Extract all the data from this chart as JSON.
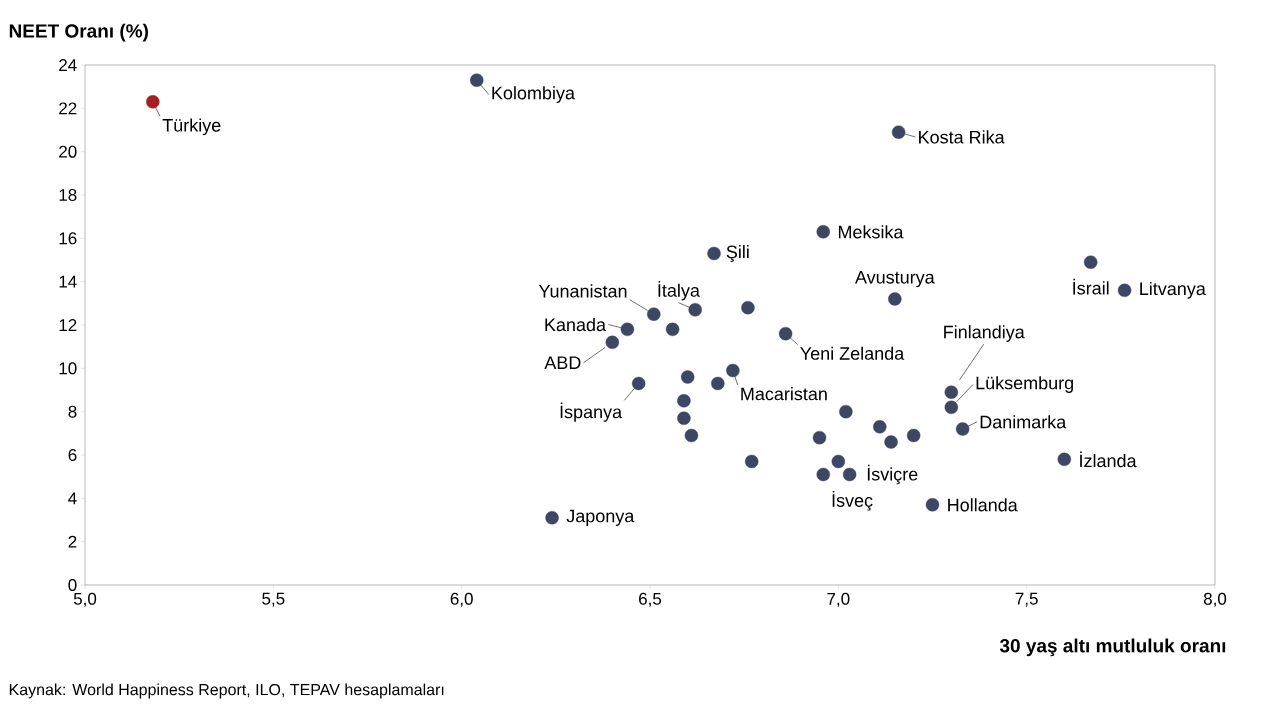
{
  "chart_data": {
    "type": "scatter",
    "ylabel": "NEET Oranı (%)",
    "xlabel": "30 yaş altı mutluluk oranı",
    "annotations": [
      "Kaynak: World Happiness Report, ILO, TEPAV hesaplamaları",
      {
        "text": "Türkiye",
        "x": 5.18,
        "y": 22.3
      },
      {
        "text": "Kolombiya",
        "x": 6.04,
        "y": 23.3
      },
      {
        "text": "Kosta Rika",
        "x": 7.16,
        "y": 20.9
      },
      {
        "text": "Meksika",
        "x": 6.96,
        "y": 16.3
      },
      {
        "text": "Şili",
        "x": 6.67,
        "y": 15.3
      },
      {
        "text": "İsrail",
        "x": 7.67,
        "y": 14.9
      },
      {
        "text": "Litvanya",
        "x": 7.76,
        "y": 13.6
      },
      {
        "text": "Avusturya",
        "x": 7.15,
        "y": 13.2
      },
      {
        "text": "İtalya",
        "x": 6.62,
        "y": 12.7
      },
      {
        "text": "Yunanistan",
        "x": 6.51,
        "y": 12.5
      },
      {
        "text": "Kanada",
        "x": 6.44,
        "y": 11.8
      },
      {
        "text": "Yeni Zelanda",
        "x": 6.86,
        "y": 11.6
      },
      {
        "text": "ABD",
        "x": 6.4,
        "y": 11.2
      },
      {
        "text": "Macaristan",
        "x": 6.72,
        "y": 9.9
      },
      {
        "text": "İspanya",
        "x": 6.47,
        "y": 9.3
      },
      {
        "text": "Finlandiya",
        "x": 7.3,
        "y": 8.9
      },
      {
        "text": "Lüksemburg",
        "x": 7.3,
        "y": 8.2
      },
      {
        "text": "Danimarka",
        "x": 7.33,
        "y": 7.2
      },
      {
        "text": "İsveç",
        "x": 6.96,
        "y": 5.1
      },
      {
        "text": "İsviçre",
        "x": 7.03,
        "y": 5.1
      },
      {
        "text": "İzlanda",
        "x": 7.6,
        "y": 5.8
      },
      {
        "text": "Hollanda",
        "x": 7.25,
        "y": 3.7
      },
      {
        "text": "Japonya",
        "x": 6.24,
        "y": 3.1
      }
    ],
    "xlim": [
      5,
      8
    ],
    "ylim": [
      0,
      24
    ],
    "xticks": [
      {
        "value": 5,
        "label": "5,0"
      },
      {
        "value": 5.5,
        "label": "5,5"
      },
      {
        "value": 6,
        "label": "6,0"
      },
      {
        "value": 6.5,
        "label": "6,5"
      },
      {
        "value": 7,
        "label": "7,0"
      },
      {
        "value": 7.5,
        "label": "7,5"
      },
      {
        "value": 8,
        "label": "8,0"
      }
    ],
    "yticks": [
      0,
      2,
      4,
      6,
      8,
      10,
      12,
      14,
      16,
      18,
      20,
      22,
      24
    ],
    "marker": "circle",
    "grid": false,
    "series": [
      {
        "color": "#a3201f",
        "x": [
          5.18
        ],
        "values": [
          22.3
        ]
      },
      {
        "color": "#3d4663",
        "x": [
          6.04,
          7.16,
          6.96,
          6.67,
          7.67,
          7.76,
          7.15,
          6.76,
          6.62,
          6.51,
          6.56,
          6.44,
          6.86,
          6.4,
          6.6,
          6.72,
          6.68,
          6.47,
          6.59,
          7.3,
          7.3,
          6.59,
          7.02,
          7.11,
          7.33,
          7.2,
          7.14,
          6.95,
          6.61,
          6.77,
          7.0,
          6.96,
          7.03,
          7.6,
          7.25,
          6.24
        ],
        "values": [
          23.3,
          20.9,
          16.3,
          15.3,
          14.9,
          13.6,
          13.2,
          12.8,
          12.7,
          12.5,
          11.8,
          11.8,
          11.6,
          11.2,
          9.6,
          9.9,
          9.3,
          9.3,
          8.5,
          8.9,
          8.2,
          7.7,
          8.0,
          7.3,
          7.2,
          6.9,
          6.6,
          6.8,
          6.9,
          5.7,
          5.7,
          5.1,
          5.1,
          5.8,
          3.7,
          3.1
        ]
      }
    ]
  }
}
